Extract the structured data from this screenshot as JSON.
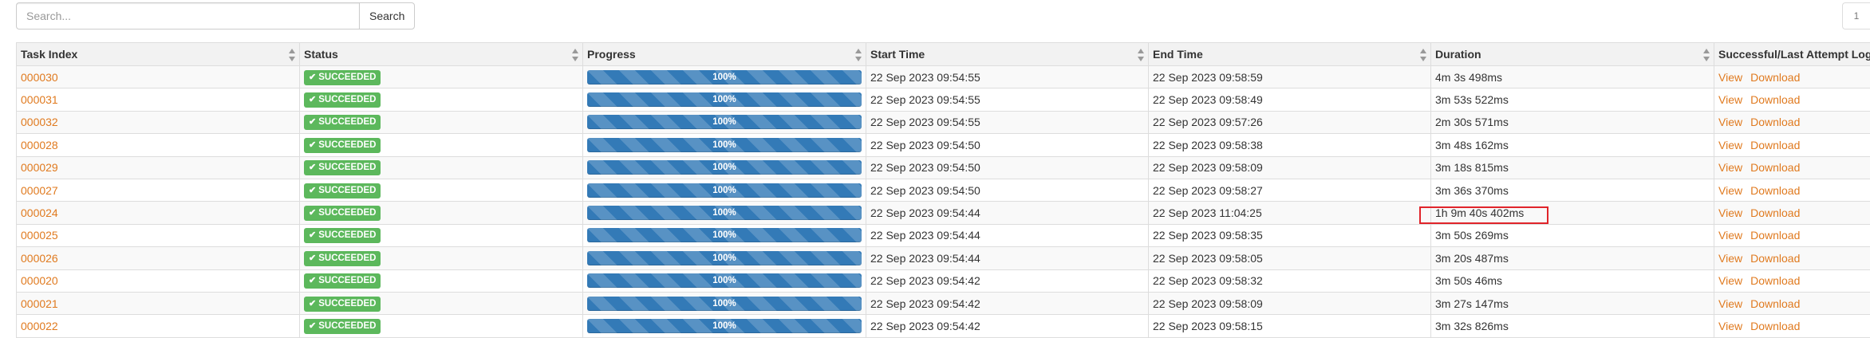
{
  "search": {
    "placeholder": "Search...",
    "button_label": "Search"
  },
  "pager": {
    "current_page": "1"
  },
  "columns": [
    {
      "key": "task_index",
      "label": "Task Index"
    },
    {
      "key": "status",
      "label": "Status"
    },
    {
      "key": "progress",
      "label": "Progress"
    },
    {
      "key": "start_time",
      "label": "Start Time"
    },
    {
      "key": "end_time",
      "label": "End Time"
    },
    {
      "key": "duration",
      "label": "Duration"
    },
    {
      "key": "logs",
      "label": "Successful/Last Attempt Log"
    }
  ],
  "status_icon": "check-icon",
  "log_links": {
    "view": "View",
    "download": "Download"
  },
  "colors": {
    "success": "#5cb85c",
    "progress": "#337ab7",
    "link": "#e07a1f",
    "highlight": "#e0242a"
  },
  "rows": [
    {
      "task_index": "000030",
      "status": "SUCCEEDED",
      "progress": 1.0,
      "progress_label": "100%",
      "start_time": "22 Sep 2023 09:54:55",
      "end_time": "22 Sep 2023 09:58:59",
      "duration": "4m 3s 498ms"
    },
    {
      "task_index": "000031",
      "status": "SUCCEEDED",
      "progress": 1.0,
      "progress_label": "100%",
      "start_time": "22 Sep 2023 09:54:55",
      "end_time": "22 Sep 2023 09:58:49",
      "duration": "3m 53s 522ms"
    },
    {
      "task_index": "000032",
      "status": "SUCCEEDED",
      "progress": 1.0,
      "progress_label": "100%",
      "start_time": "22 Sep 2023 09:54:55",
      "end_time": "22 Sep 2023 09:57:26",
      "duration": "2m 30s 571ms"
    },
    {
      "task_index": "000028",
      "status": "SUCCEEDED",
      "progress": 1.0,
      "progress_label": "100%",
      "start_time": "22 Sep 2023 09:54:50",
      "end_time": "22 Sep 2023 09:58:38",
      "duration": "3m 48s 162ms"
    },
    {
      "task_index": "000029",
      "status": "SUCCEEDED",
      "progress": 1.0,
      "progress_label": "100%",
      "start_time": "22 Sep 2023 09:54:50",
      "end_time": "22 Sep 2023 09:58:09",
      "duration": "3m 18s 815ms"
    },
    {
      "task_index": "000027",
      "status": "SUCCEEDED",
      "progress": 1.0,
      "progress_label": "100%",
      "start_time": "22 Sep 2023 09:54:50",
      "end_time": "22 Sep 2023 09:58:27",
      "duration": "3m 36s 370ms"
    },
    {
      "task_index": "000024",
      "status": "SUCCEEDED",
      "progress": 1.0,
      "progress_label": "100%",
      "start_time": "22 Sep 2023 09:54:44",
      "end_time": "22 Sep 2023 11:04:25",
      "duration": "1h 9m 40s 402ms",
      "highlighted": true
    },
    {
      "task_index": "000025",
      "status": "SUCCEEDED",
      "progress": 1.0,
      "progress_label": "100%",
      "start_time": "22 Sep 2023 09:54:44",
      "end_time": "22 Sep 2023 09:58:35",
      "duration": "3m 50s 269ms"
    },
    {
      "task_index": "000026",
      "status": "SUCCEEDED",
      "progress": 1.0,
      "progress_label": "100%",
      "start_time": "22 Sep 2023 09:54:44",
      "end_time": "22 Sep 2023 09:58:05",
      "duration": "3m 20s 487ms"
    },
    {
      "task_index": "000020",
      "status": "SUCCEEDED",
      "progress": 1.0,
      "progress_label": "100%",
      "start_time": "22 Sep 2023 09:54:42",
      "end_time": "22 Sep 2023 09:58:32",
      "duration": "3m 50s 46ms"
    },
    {
      "task_index": "000021",
      "status": "SUCCEEDED",
      "progress": 1.0,
      "progress_label": "100%",
      "start_time": "22 Sep 2023 09:54:42",
      "end_time": "22 Sep 2023 09:58:09",
      "duration": "3m 27s 147ms"
    },
    {
      "task_index": "000022",
      "status": "SUCCEEDED",
      "progress": 1.0,
      "progress_label": "100%",
      "start_time": "22 Sep 2023 09:54:42",
      "end_time": "22 Sep 2023 09:58:15",
      "duration": "3m 32s 826ms"
    }
  ]
}
